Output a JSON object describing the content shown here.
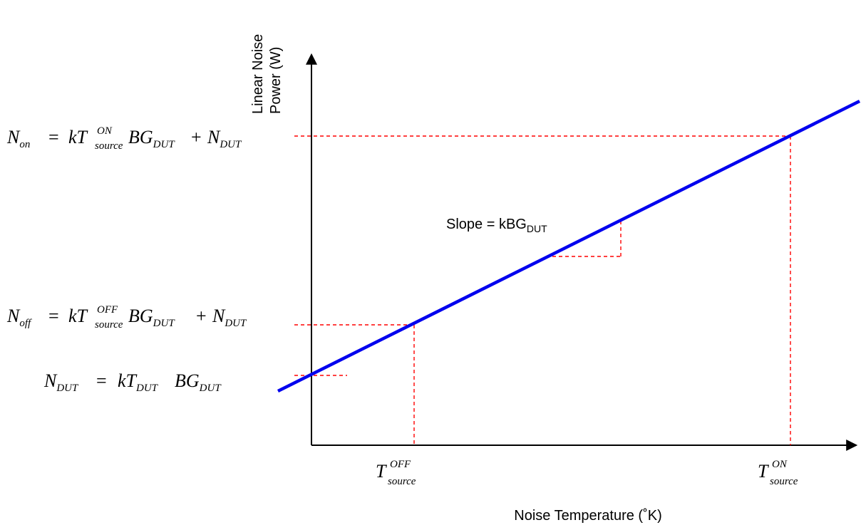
{
  "axes": {
    "y_label_line1": "Linear Noise",
    "y_label_line2": "Power (W)",
    "x_label": "Noise Temperature (˚K)"
  },
  "slope": {
    "prefix": "Slope = kBG",
    "subscript": "DUT"
  },
  "equations": {
    "n_on": {
      "lhs": "N",
      "lhs_sub": "on",
      "eq": "=",
      "k": "kT",
      "t_sup": "ON",
      "t_sub": "source",
      "bg": "BG",
      "bg_sub": "DUT",
      "plus": "+",
      "n": "N",
      "n_sub": "DUT"
    },
    "n_off": {
      "lhs": "N",
      "lhs_sub": "off",
      "eq": "=",
      "k": "kT",
      "t_sup": "OFF",
      "t_sub": "source",
      "bg": "BG",
      "bg_sub": "DUT",
      "plus": "+",
      "n": "N",
      "n_sub": "DUT"
    },
    "n_dut": {
      "lhs": "N",
      "lhs_sub": "DUT",
      "eq": "=",
      "k": "kT",
      "t_sub": "DUT",
      "bg": "BG",
      "bg_sub": "DUT"
    }
  },
  "x_ticks": {
    "t_off": {
      "base": "T",
      "sup": "OFF",
      "sub": "source"
    },
    "t_on": {
      "base": "T",
      "sup": "ON",
      "sub": "source"
    }
  },
  "colors": {
    "line": "#0000ee",
    "guides": "#ff0000",
    "axes": "#000000"
  }
}
